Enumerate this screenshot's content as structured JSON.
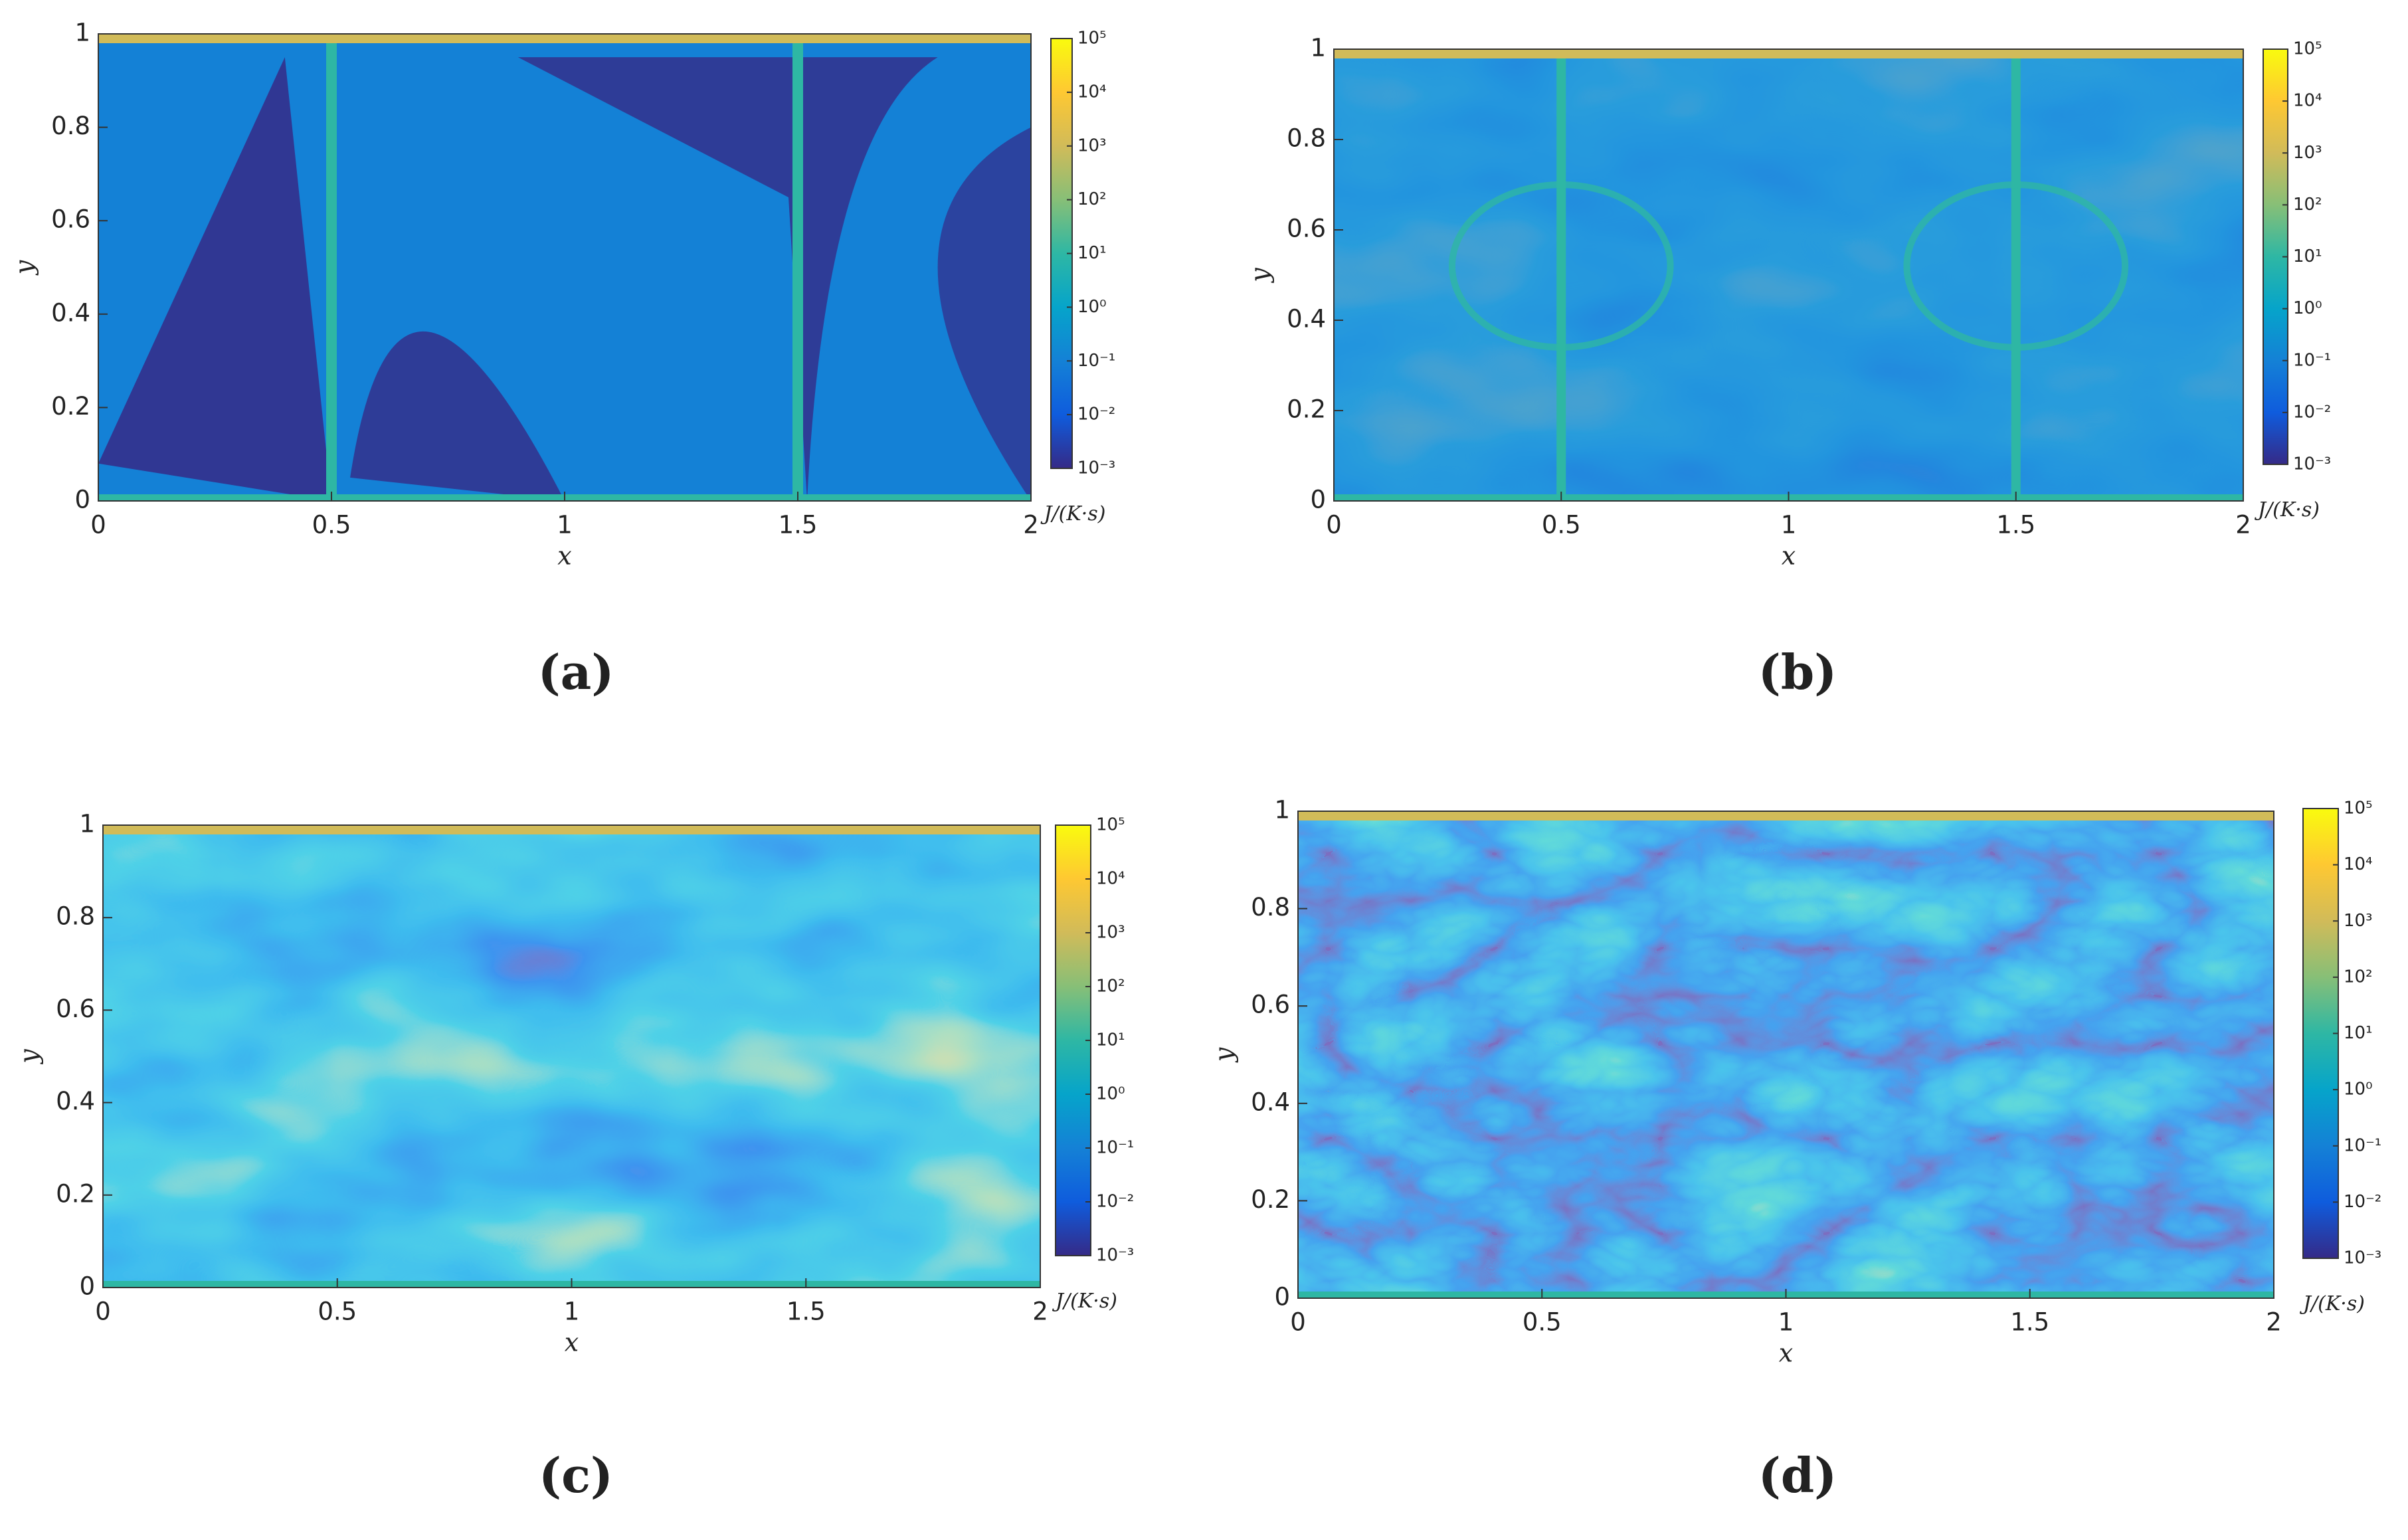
{
  "chart_data": [
    {
      "type": "heatmap",
      "panel_label": "(a)",
      "xlabel": "x",
      "ylabel": "y",
      "xlim": [
        0,
        2
      ],
      "ylim": [
        0,
        1
      ],
      "xticks": [
        0,
        0.5,
        1,
        1.5,
        2
      ],
      "yticks": [
        0,
        0.2,
        0.4,
        0.6,
        0.8,
        1
      ],
      "colorbar": {
        "label": "J/(K·s)",
        "log": true,
        "lim": [
          0.001,
          100000
        ],
        "colors": [
          "#352a87",
          "#0f5cdd",
          "#1481d6",
          "#06a4ca",
          "#2eb7a4",
          "#87bf77",
          "#d1bb59",
          "#fec832",
          "#f9fb0e"
        ],
        "ticks": [
          {
            "value": 0.001,
            "label": "10⁻³"
          },
          {
            "value": 0.01,
            "label": "10⁻²"
          },
          {
            "value": 0.1,
            "label": "10⁻¹"
          },
          {
            "value": 1,
            "label": "10⁰"
          },
          {
            "value": 10,
            "label": "10¹"
          },
          {
            "value": 100,
            "label": "10²"
          },
          {
            "value": 1000,
            "label": "10³"
          },
          {
            "value": 10000,
            "label": "10⁴"
          },
          {
            "value": 100000,
            "label": "10⁵"
          }
        ]
      }
    },
    {
      "type": "heatmap",
      "panel_label": "(b)",
      "xlabel": "x",
      "ylabel": "y",
      "xlim": [
        0,
        2
      ],
      "ylim": [
        0,
        1
      ],
      "xticks": [
        0,
        0.5,
        1,
        1.5,
        2
      ],
      "yticks": [
        0,
        0.2,
        0.4,
        0.6,
        0.8,
        1
      ],
      "colorbar": {
        "label": "J/(K·s)",
        "log": true,
        "lim": [
          0.001,
          100000
        ],
        "colors": [
          "#352a87",
          "#0f5cdd",
          "#1481d6",
          "#06a4ca",
          "#2eb7a4",
          "#87bf77",
          "#d1bb59",
          "#fec832",
          "#f9fb0e"
        ],
        "ticks": [
          {
            "value": 0.001,
            "label": "10⁻³"
          },
          {
            "value": 0.01,
            "label": "10⁻²"
          },
          {
            "value": 0.1,
            "label": "10⁻¹"
          },
          {
            "value": 1,
            "label": "10⁰"
          },
          {
            "value": 10,
            "label": "10¹"
          },
          {
            "value": 100,
            "label": "10²"
          },
          {
            "value": 1000,
            "label": "10³"
          },
          {
            "value": 10000,
            "label": "10⁴"
          },
          {
            "value": 100000,
            "label": "10⁵"
          }
        ]
      }
    },
    {
      "type": "heatmap",
      "panel_label": "(c)",
      "xlabel": "x",
      "ylabel": "y",
      "xlim": [
        0,
        2
      ],
      "ylim": [
        0,
        1
      ],
      "xticks": [
        0,
        0.5,
        1,
        1.5,
        2
      ],
      "yticks": [
        0,
        0.2,
        0.4,
        0.6,
        0.8,
        1
      ],
      "colorbar": {
        "label": "J/(K·s)",
        "log": true,
        "lim": [
          0.001,
          100000
        ],
        "colors": [
          "#352a87",
          "#0f5cdd",
          "#1481d6",
          "#06a4ca",
          "#2eb7a4",
          "#87bf77",
          "#d1bb59",
          "#fec832",
          "#f9fb0e"
        ],
        "ticks": [
          {
            "value": 0.001,
            "label": "10⁻³"
          },
          {
            "value": 0.01,
            "label": "10⁻²"
          },
          {
            "value": 0.1,
            "label": "10⁻¹"
          },
          {
            "value": 1,
            "label": "10⁰"
          },
          {
            "value": 10,
            "label": "10¹"
          },
          {
            "value": 100,
            "label": "10²"
          },
          {
            "value": 1000,
            "label": "10³"
          },
          {
            "value": 10000,
            "label": "10⁴"
          },
          {
            "value": 100000,
            "label": "10⁵"
          }
        ]
      }
    },
    {
      "type": "heatmap",
      "panel_label": "(d)",
      "xlabel": "x",
      "ylabel": "y",
      "xlim": [
        0,
        2
      ],
      "ylim": [
        0,
        1
      ],
      "xticks": [
        0,
        0.5,
        1,
        1.5,
        2
      ],
      "yticks": [
        0,
        0.2,
        0.4,
        0.6,
        0.8,
        1
      ],
      "colorbar": {
        "label": "J/(K·s)",
        "log": true,
        "lim": [
          0.001,
          100000
        ],
        "colors": [
          "#352a87",
          "#0f5cdd",
          "#1481d6",
          "#06a4ca",
          "#2eb7a4",
          "#87bf77",
          "#d1bb59",
          "#fec832",
          "#f9fb0e"
        ],
        "ticks": [
          {
            "value": 0.001,
            "label": "10⁻³"
          },
          {
            "value": 0.01,
            "label": "10⁻²"
          },
          {
            "value": 0.1,
            "label": "10⁻¹"
          },
          {
            "value": 1,
            "label": "10⁰"
          },
          {
            "value": 10,
            "label": "10¹"
          },
          {
            "value": 100,
            "label": "10²"
          },
          {
            "value": 1000,
            "label": "10³"
          },
          {
            "value": 10000,
            "label": "10⁴"
          },
          {
            "value": 100000,
            "label": "10⁵"
          }
        ]
      }
    }
  ]
}
